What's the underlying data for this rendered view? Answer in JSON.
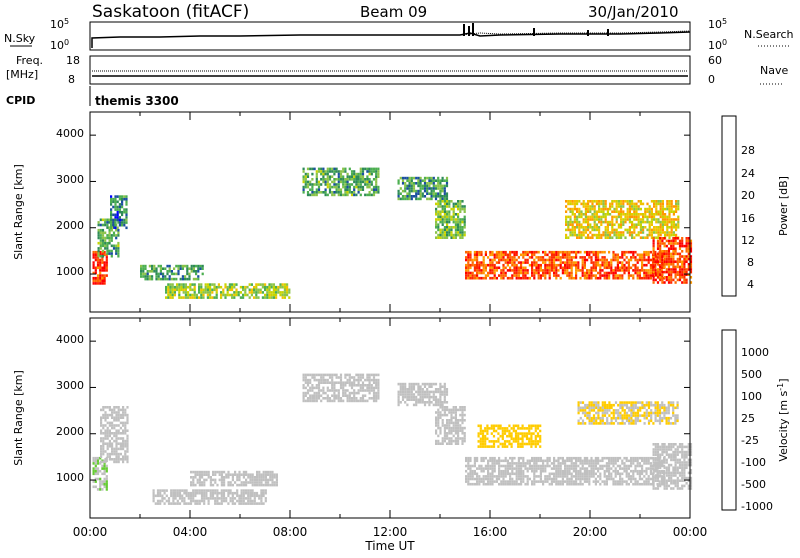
{
  "header": {
    "station": "Saskatoon (fitACF)",
    "beam": "Beam 09",
    "date": "30/Jan/2010"
  },
  "noise_panel": {
    "left_label": "N.Sky",
    "right_label": "N.Search",
    "left_ticks": [
      "10^5",
      "10^0"
    ],
    "right_ticks": [
      "10^5",
      "10^0"
    ]
  },
  "freq_panel": {
    "left_label_1": "Freq.",
    "left_label_2": "[MHz]",
    "right_label": "Nave",
    "left_ticks": [
      "18",
      "8"
    ],
    "right_ticks": [
      "60",
      "0"
    ]
  },
  "cpid": {
    "label": "CPID",
    "value": "themis 3300"
  },
  "time_axis": {
    "label": "Time UT",
    "ticks": [
      "00:00",
      "04:00",
      "08:00",
      "12:00",
      "16:00",
      "20:00",
      "00:00"
    ]
  },
  "colors": {
    "power_scale": [
      "#0000ff",
      "#1a4fa0",
      "#2e8b57",
      "#4caf50",
      "#8bc34a",
      "#c8d400",
      "#f2c200",
      "#ff9900",
      "#ff6600",
      "#ff2a00",
      "#ff0000"
    ],
    "velocity_scale": [
      "#ff0000",
      "#ff5a00",
      "#ff9900",
      "#ffcc00",
      "#c0c0c0",
      "#c0c0c0",
      "#66cc33",
      "#2e8b57",
      "#1e6e9e",
      "#1a3fb0"
    ]
  },
  "chart_data": [
    {
      "type": "heatmap",
      "title": "",
      "xlabel": "",
      "ylabel": "Slant Range [km]",
      "xlim_hours": [
        0,
        24
      ],
      "ylim": [
        180,
        4500
      ],
      "yticks": [
        "1000",
        "2000",
        "3000",
        "4000"
      ],
      "colorbar": {
        "label": "Power [dB]",
        "range": [
          0,
          32
        ],
        "ticks": [
          "4",
          "8",
          "12",
          "16",
          "20",
          "24",
          "28"
        ]
      },
      "regions": [
        {
          "t0": 0.1,
          "t1": 0.7,
          "r0": 800,
          "r1": 1500,
          "value": 28
        },
        {
          "t0": 0.3,
          "t1": 1.1,
          "r0": 1400,
          "r1": 2200,
          "value": 10
        },
        {
          "t0": 0.8,
          "t1": 1.5,
          "r0": 2000,
          "r1": 2700,
          "value": 7
        },
        {
          "t0": 2.0,
          "t1": 4.5,
          "r0": 900,
          "r1": 1200,
          "value": 9
        },
        {
          "t0": 3.0,
          "t1": 8.0,
          "r0": 500,
          "r1": 800,
          "value": 14
        },
        {
          "t0": 8.5,
          "t1": 11.5,
          "r0": 2700,
          "r1": 3300,
          "value": 10
        },
        {
          "t0": 12.3,
          "t1": 14.3,
          "r0": 2600,
          "r1": 3100,
          "value": 9
        },
        {
          "t0": 13.8,
          "t1": 15.0,
          "r0": 1800,
          "r1": 2600,
          "value": 12
        },
        {
          "t0": 15.0,
          "t1": 23.0,
          "r0": 900,
          "r1": 1500,
          "value": 26
        },
        {
          "t0": 19.0,
          "t1": 23.5,
          "r0": 1800,
          "r1": 2600,
          "value": 18
        },
        {
          "t0": 22.5,
          "t1": 24.0,
          "r0": 800,
          "r1": 1800,
          "value": 27
        }
      ]
    },
    {
      "type": "heatmap",
      "title": "",
      "xlabel": "Time UT",
      "ylabel": "Slant Range [km]",
      "xlim_hours": [
        0,
        24
      ],
      "ylim": [
        180,
        4500
      ],
      "yticks": [
        "1000",
        "2000",
        "3000",
        "4000"
      ],
      "colorbar": {
        "label": "Velocity [m s^-1]",
        "range": [
          -1000,
          1000
        ],
        "ticks": [
          "1000",
          "500",
          "100",
          "25",
          "-25",
          "-100",
          "-500",
          "-1000"
        ]
      },
      "regions": [
        {
          "t0": 0.1,
          "t1": 0.7,
          "r0": 800,
          "r1": 1500,
          "value": 200
        },
        {
          "t0": 0.4,
          "t1": 1.5,
          "r0": 1400,
          "r1": 2600,
          "value": 0
        },
        {
          "t0": 2.5,
          "t1": 7.0,
          "r0": 500,
          "r1": 800,
          "value": 150
        },
        {
          "t0": 4.0,
          "t1": 7.5,
          "r0": 900,
          "r1": 1200,
          "value": 10
        },
        {
          "t0": 8.5,
          "t1": 11.5,
          "r0": 2700,
          "r1": 3300,
          "value": 0
        },
        {
          "t0": 12.3,
          "t1": 14.3,
          "r0": 2600,
          "r1": 3100,
          "value": 0
        },
        {
          "t0": 13.8,
          "t1": 15.0,
          "r0": 1800,
          "r1": 2600,
          "value": 0
        },
        {
          "t0": 15.0,
          "t1": 23.0,
          "r0": 900,
          "r1": 1500,
          "value": 0
        },
        {
          "t0": 15.5,
          "t1": 18.0,
          "r0": 1700,
          "r1": 2200,
          "value": -300
        },
        {
          "t0": 19.5,
          "t1": 23.5,
          "r0": 2200,
          "r1": 2700,
          "value": -200
        },
        {
          "t0": 22.5,
          "t1": 24.0,
          "r0": 800,
          "r1": 1800,
          "value": 50
        }
      ]
    }
  ]
}
